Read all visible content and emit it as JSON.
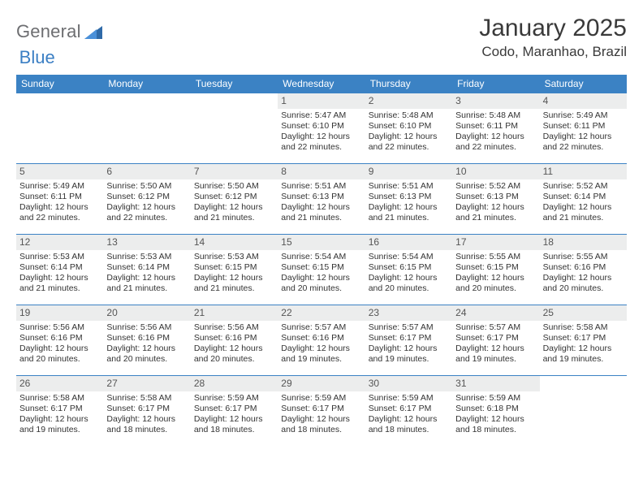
{
  "logo": {
    "text1": "General",
    "text2": "Blue"
  },
  "title": "January 2025",
  "location": "Codo, Maranhao, Brazil",
  "colors": {
    "headerBar": "#3b82c4",
    "dayStripe": "#eceded",
    "text": "#333333",
    "logoGray": "#6d6e71",
    "logoBlue": "#3b7fc4",
    "background": "#ffffff"
  },
  "dow": [
    "Sunday",
    "Monday",
    "Tuesday",
    "Wednesday",
    "Thursday",
    "Friday",
    "Saturday"
  ],
  "weeks": [
    [
      {
        "n": "",
        "sr": "",
        "ss": "",
        "dl": ""
      },
      {
        "n": "",
        "sr": "",
        "ss": "",
        "dl": ""
      },
      {
        "n": "",
        "sr": "",
        "ss": "",
        "dl": ""
      },
      {
        "n": "1",
        "sr": "Sunrise: 5:47 AM",
        "ss": "Sunset: 6:10 PM",
        "dl": "Daylight: 12 hours and 22 minutes."
      },
      {
        "n": "2",
        "sr": "Sunrise: 5:48 AM",
        "ss": "Sunset: 6:10 PM",
        "dl": "Daylight: 12 hours and 22 minutes."
      },
      {
        "n": "3",
        "sr": "Sunrise: 5:48 AM",
        "ss": "Sunset: 6:11 PM",
        "dl": "Daylight: 12 hours and 22 minutes."
      },
      {
        "n": "4",
        "sr": "Sunrise: 5:49 AM",
        "ss": "Sunset: 6:11 PM",
        "dl": "Daylight: 12 hours and 22 minutes."
      }
    ],
    [
      {
        "n": "5",
        "sr": "Sunrise: 5:49 AM",
        "ss": "Sunset: 6:11 PM",
        "dl": "Daylight: 12 hours and 22 minutes."
      },
      {
        "n": "6",
        "sr": "Sunrise: 5:50 AM",
        "ss": "Sunset: 6:12 PM",
        "dl": "Daylight: 12 hours and 22 minutes."
      },
      {
        "n": "7",
        "sr": "Sunrise: 5:50 AM",
        "ss": "Sunset: 6:12 PM",
        "dl": "Daylight: 12 hours and 21 minutes."
      },
      {
        "n": "8",
        "sr": "Sunrise: 5:51 AM",
        "ss": "Sunset: 6:13 PM",
        "dl": "Daylight: 12 hours and 21 minutes."
      },
      {
        "n": "9",
        "sr": "Sunrise: 5:51 AM",
        "ss": "Sunset: 6:13 PM",
        "dl": "Daylight: 12 hours and 21 minutes."
      },
      {
        "n": "10",
        "sr": "Sunrise: 5:52 AM",
        "ss": "Sunset: 6:13 PM",
        "dl": "Daylight: 12 hours and 21 minutes."
      },
      {
        "n": "11",
        "sr": "Sunrise: 5:52 AM",
        "ss": "Sunset: 6:14 PM",
        "dl": "Daylight: 12 hours and 21 minutes."
      }
    ],
    [
      {
        "n": "12",
        "sr": "Sunrise: 5:53 AM",
        "ss": "Sunset: 6:14 PM",
        "dl": "Daylight: 12 hours and 21 minutes."
      },
      {
        "n": "13",
        "sr": "Sunrise: 5:53 AM",
        "ss": "Sunset: 6:14 PM",
        "dl": "Daylight: 12 hours and 21 minutes."
      },
      {
        "n": "14",
        "sr": "Sunrise: 5:53 AM",
        "ss": "Sunset: 6:15 PM",
        "dl": "Daylight: 12 hours and 21 minutes."
      },
      {
        "n": "15",
        "sr": "Sunrise: 5:54 AM",
        "ss": "Sunset: 6:15 PM",
        "dl": "Daylight: 12 hours and 20 minutes."
      },
      {
        "n": "16",
        "sr": "Sunrise: 5:54 AM",
        "ss": "Sunset: 6:15 PM",
        "dl": "Daylight: 12 hours and 20 minutes."
      },
      {
        "n": "17",
        "sr": "Sunrise: 5:55 AM",
        "ss": "Sunset: 6:15 PM",
        "dl": "Daylight: 12 hours and 20 minutes."
      },
      {
        "n": "18",
        "sr": "Sunrise: 5:55 AM",
        "ss": "Sunset: 6:16 PM",
        "dl": "Daylight: 12 hours and 20 minutes."
      }
    ],
    [
      {
        "n": "19",
        "sr": "Sunrise: 5:56 AM",
        "ss": "Sunset: 6:16 PM",
        "dl": "Daylight: 12 hours and 20 minutes."
      },
      {
        "n": "20",
        "sr": "Sunrise: 5:56 AM",
        "ss": "Sunset: 6:16 PM",
        "dl": "Daylight: 12 hours and 20 minutes."
      },
      {
        "n": "21",
        "sr": "Sunrise: 5:56 AM",
        "ss": "Sunset: 6:16 PM",
        "dl": "Daylight: 12 hours and 20 minutes."
      },
      {
        "n": "22",
        "sr": "Sunrise: 5:57 AM",
        "ss": "Sunset: 6:16 PM",
        "dl": "Daylight: 12 hours and 19 minutes."
      },
      {
        "n": "23",
        "sr": "Sunrise: 5:57 AM",
        "ss": "Sunset: 6:17 PM",
        "dl": "Daylight: 12 hours and 19 minutes."
      },
      {
        "n": "24",
        "sr": "Sunrise: 5:57 AM",
        "ss": "Sunset: 6:17 PM",
        "dl": "Daylight: 12 hours and 19 minutes."
      },
      {
        "n": "25",
        "sr": "Sunrise: 5:58 AM",
        "ss": "Sunset: 6:17 PM",
        "dl": "Daylight: 12 hours and 19 minutes."
      }
    ],
    [
      {
        "n": "26",
        "sr": "Sunrise: 5:58 AM",
        "ss": "Sunset: 6:17 PM",
        "dl": "Daylight: 12 hours and 19 minutes."
      },
      {
        "n": "27",
        "sr": "Sunrise: 5:58 AM",
        "ss": "Sunset: 6:17 PM",
        "dl": "Daylight: 12 hours and 18 minutes."
      },
      {
        "n": "28",
        "sr": "Sunrise: 5:59 AM",
        "ss": "Sunset: 6:17 PM",
        "dl": "Daylight: 12 hours and 18 minutes."
      },
      {
        "n": "29",
        "sr": "Sunrise: 5:59 AM",
        "ss": "Sunset: 6:17 PM",
        "dl": "Daylight: 12 hours and 18 minutes."
      },
      {
        "n": "30",
        "sr": "Sunrise: 5:59 AM",
        "ss": "Sunset: 6:17 PM",
        "dl": "Daylight: 12 hours and 18 minutes."
      },
      {
        "n": "31",
        "sr": "Sunrise: 5:59 AM",
        "ss": "Sunset: 6:18 PM",
        "dl": "Daylight: 12 hours and 18 minutes."
      },
      {
        "n": "",
        "sr": "",
        "ss": "",
        "dl": ""
      }
    ]
  ]
}
